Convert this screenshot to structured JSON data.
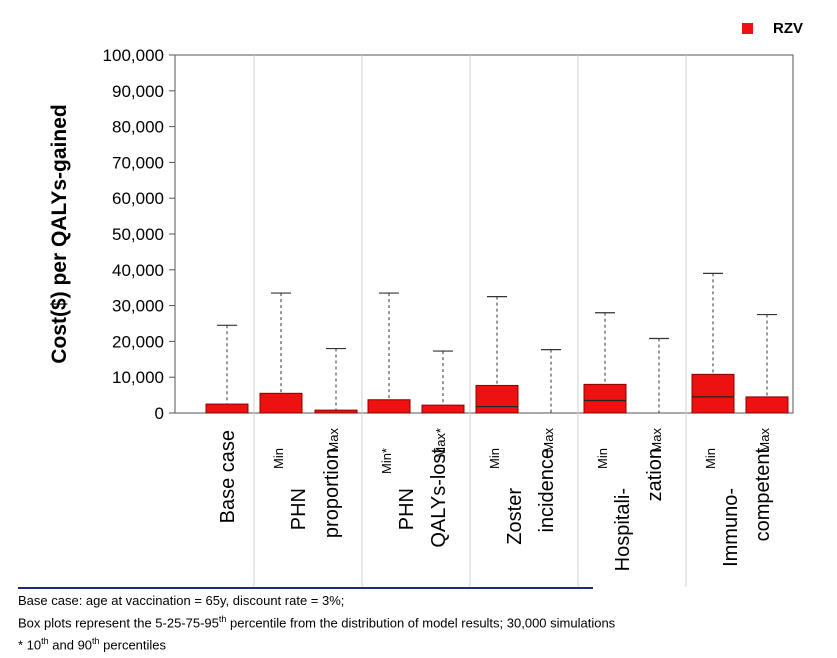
{
  "chart_data": {
    "type": "boxplot",
    "legend": [
      {
        "label": "RZV",
        "color": "#ee1111"
      }
    ],
    "ylabel": "Cost($) per QALYs-gained",
    "ylim": [
      0,
      100000
    ],
    "yticks": [
      0,
      10000,
      20000,
      30000,
      40000,
      50000,
      60000,
      70000,
      80000,
      90000,
      100000
    ],
    "ytick_labels": [
      "0",
      "10,000",
      "20,000",
      "30,000",
      "40,000",
      "50,000",
      "60,000",
      "70,000",
      "80,000",
      "90,000",
      "100,000"
    ],
    "groups": [
      {
        "line1": "Base case",
        "line2": "",
        "boxes": [
          {
            "sub": "",
            "sup": "",
            "p5": 0,
            "p25": 0,
            "p50": 0,
            "p75": 2500,
            "p95": 24500
          }
        ]
      },
      {
        "line1": "PHN",
        "line2": "proportion",
        "boxes": [
          {
            "sub": "",
            "sup": "Min",
            "p5": 0,
            "p25": 0,
            "p50": 0,
            "p75": 5500,
            "p95": 33500
          },
          {
            "sub": "Max",
            "sup": "",
            "p5": 0,
            "p25": 0,
            "p50": 0,
            "p75": 800,
            "p95": 18000
          }
        ]
      },
      {
        "line1": "PHN",
        "line2": "QALYs-lost",
        "boxes": [
          {
            "sub": "",
            "sup": "Min*",
            "p5": 0,
            "p25": 0,
            "p50": 0,
            "p75": 3700,
            "p95": 33500
          },
          {
            "sub": "Max*",
            "sup": "",
            "p5": 0,
            "p25": 0,
            "p50": 0,
            "p75": 2200,
            "p95": 17300
          }
        ]
      },
      {
        "line1": "Zoster",
        "line2": "incidence",
        "boxes": [
          {
            "sub": "",
            "sup": "Min",
            "p5": 0,
            "p25": 0,
            "p50": 1800,
            "p75": 7700,
            "p95": 32500
          },
          {
            "sub": "Max",
            "sup": "",
            "p5": 0,
            "p25": 0,
            "p50": 0,
            "p75": 0,
            "p95": 17700
          }
        ]
      },
      {
        "line1": "Hospitali-",
        "line2": "zation",
        "boxes": [
          {
            "sub": "",
            "sup": "Min",
            "p5": 0,
            "p25": 0,
            "p50": 3500,
            "p75": 8000,
            "p95": 28000
          },
          {
            "sub": "Max",
            "sup": "",
            "p5": 0,
            "p25": 0,
            "p50": 0,
            "p75": 0,
            "p95": 20800
          }
        ]
      },
      {
        "line1": "Immuno-",
        "line2": "competent",
        "boxes": [
          {
            "sub": "",
            "sup": "Min",
            "p5": 0,
            "p25": 0,
            "p50": 4500,
            "p75": 10800,
            "p95": 39000
          },
          {
            "sub": "Max",
            "sup": "",
            "p5": 0,
            "p25": 0,
            "p50": 0,
            "p75": 4500,
            "p95": 27500
          }
        ]
      }
    ],
    "box_color": "#ee1111"
  },
  "footnotes": {
    "line1": "Base case: age at vaccination = 65y, discount rate = 3%;",
    "line2_pre": "Box plots represent the 5-25-75-95",
    "line2_sup": "th",
    "line2_post": "  percentile from the distribution of model results; 30,000 simulations",
    "line3_pre": " * 10",
    "line3_sup1": "th",
    "line3_mid": " and 90",
    "line3_sup2": "th",
    "line3_post": " percentiles"
  }
}
